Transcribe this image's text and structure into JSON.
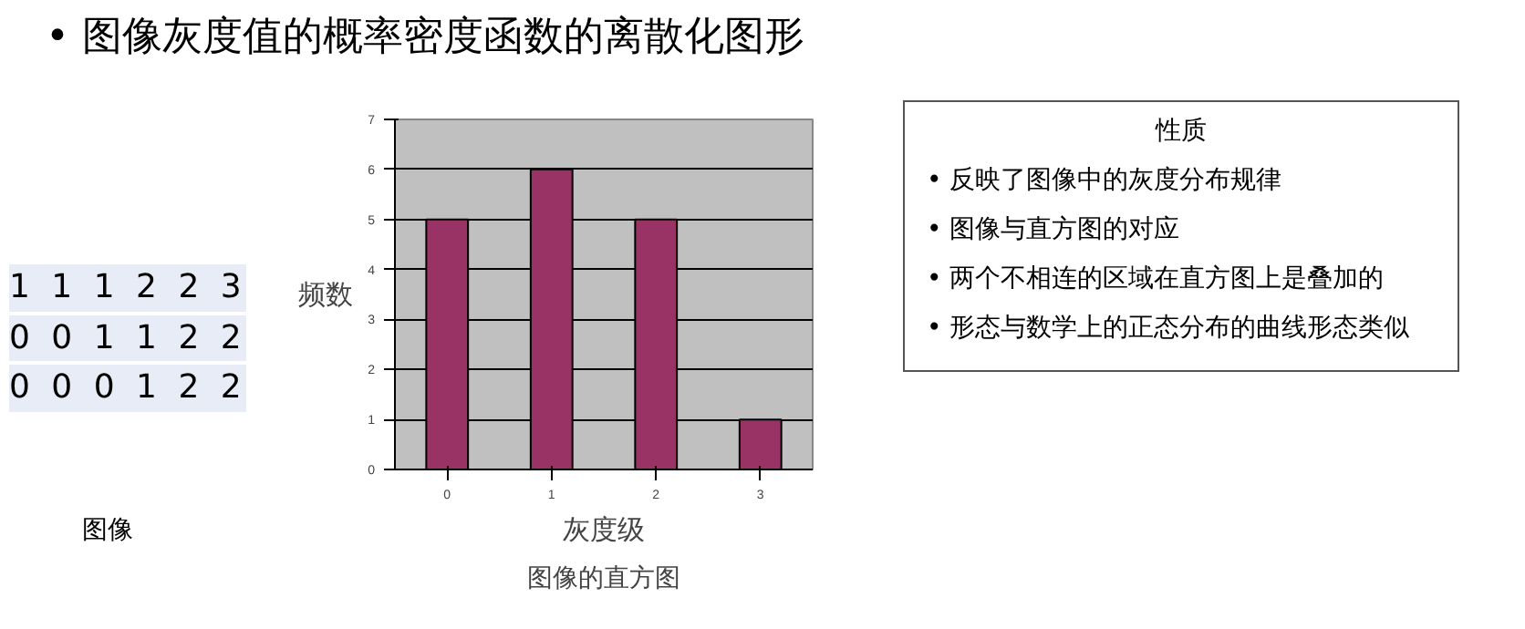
{
  "chart_data": {
    "type": "bar",
    "title": "• 图像灰度值的概率密度函数的离散化图形",
    "categories": [
      "0",
      "1",
      "2",
      "3"
    ],
    "values": [
      5,
      6,
      5,
      1
    ],
    "color": "#993366",
    "ylim": [
      0,
      7
    ],
    "yticks": [
      0,
      1,
      2,
      3,
      4,
      5,
      6,
      7
    ],
    "grid": "y",
    "xlabel": "灰度级",
    "ylabel": "频数",
    "annotations": [
      "1 1 1 2 2 3",
      "0 0 1 1 2 2",
      "0 0 0 1 2 2",
      "图像",
      "图像的直方图",
      "性质",
      "• 反映了图像中的灰度分布规律",
      "• 图像与直方图的对应",
      "• 两个不相连的区域在直方图上是叠加的",
      "• 形态与数学上的正态分布的曲线形态类似"
    ]
  }
}
